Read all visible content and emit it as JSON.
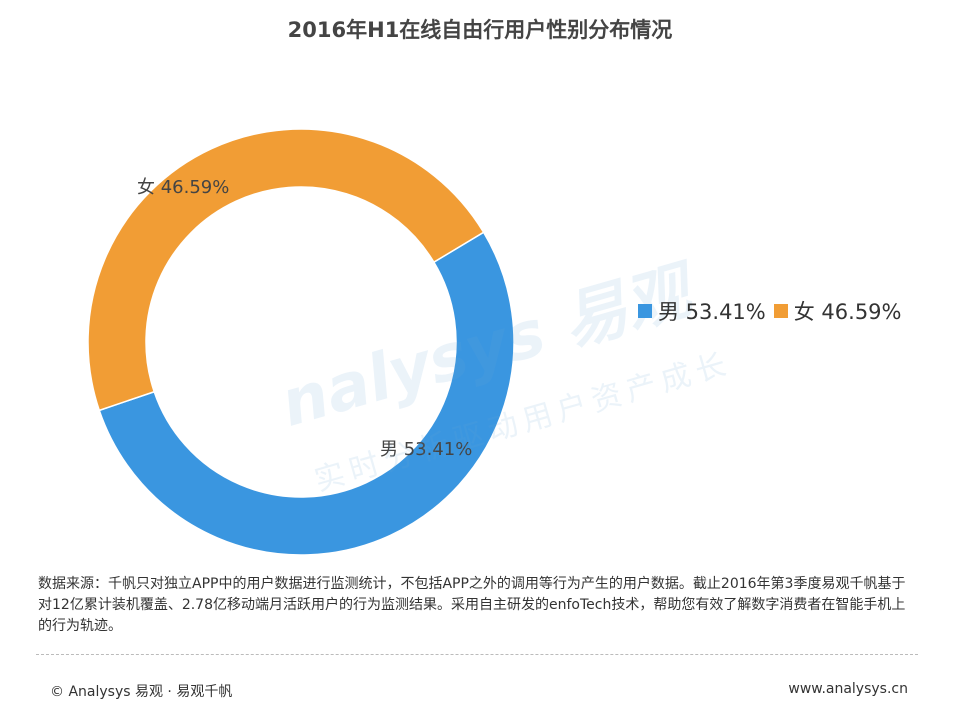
{
  "chart_data": {
    "type": "pie",
    "variant": "donut",
    "title": "2016年H1在线自由行用户性别分布情况",
    "slices": [
      {
        "name": "男",
        "value": 53.41,
        "label": "男 53.41%",
        "color": "#3a96e0"
      },
      {
        "name": "女",
        "value": 46.59,
        "label": "女 46.59%",
        "color": "#f19d35"
      }
    ],
    "legend": "right",
    "legend_entries": [
      "男 53.41%",
      "女 46.59%"
    ]
  },
  "watermark": {
    "brand": "nalysys 易观",
    "slogan": "实时分析驱动用户资产成长"
  },
  "source_note": "数据来源：千帆只对独立APP中的用户数据进行监测统计，不包括APP之外的调用等行为产生的用户数据。截止2016年第3季度易观千帆基于对12亿累计装机覆盖、2.78亿移动端月活跃用户的行为监测结果。采用自主研发的enfoTech技术，帮助您有效了解数字消费者在智能手机上的行为轨迹。",
  "footer": {
    "copyright": "© Analysys 易观 · 易观千帆",
    "website": "www.analysys.cn"
  }
}
